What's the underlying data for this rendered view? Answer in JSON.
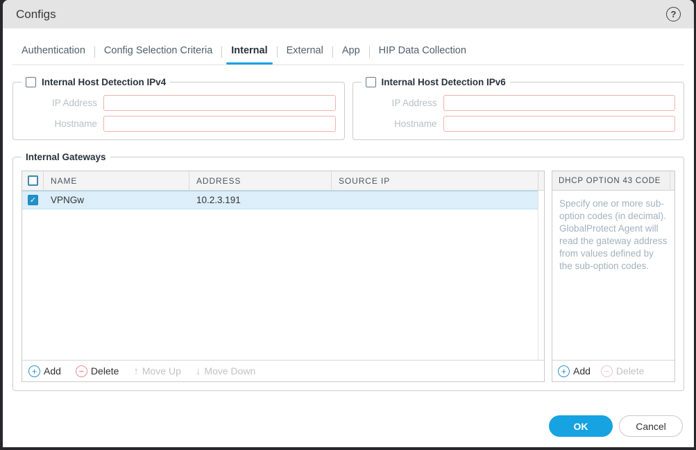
{
  "colors": {
    "accent_blue": "#17a2e2",
    "checkbox_blue": "#2191c9",
    "selection_blue": "#dceefa",
    "input_border_salmon": "#f0b2ab",
    "danger_red": "#e26b6b",
    "header_gray": "#e5e4e4"
  },
  "header": {
    "title": "Configs",
    "help_glyph": "?"
  },
  "icons": {
    "plus": "+",
    "minus": "−",
    "arrow_up": "↑",
    "arrow_down": "↓",
    "check": "✓"
  },
  "tabs": [
    {
      "label": "Authentication",
      "active": false
    },
    {
      "label": "Config Selection Criteria",
      "active": false
    },
    {
      "label": "Internal",
      "active": true
    },
    {
      "label": "External",
      "active": false
    },
    {
      "label": "App",
      "active": false
    },
    {
      "label": "HIP Data Collection",
      "active": false
    }
  ],
  "ipv4": {
    "legend": "Internal Host Detection IPv4",
    "checkbox_checked": false,
    "ip_label": "IP Address",
    "ip_value": "",
    "hostname_label": "Hostname",
    "hostname_value": ""
  },
  "ipv6": {
    "legend": "Internal Host Detection IPv6",
    "checkbox_checked": false,
    "ip_label": "IP Address",
    "ip_value": "",
    "hostname_label": "Hostname",
    "hostname_value": ""
  },
  "gateways": {
    "legend": "Internal Gateways",
    "table": {
      "select_all_checked": false,
      "columns": [
        "NAME",
        "ADDRESS",
        "SOURCE IP"
      ],
      "rows": [
        {
          "checked": true,
          "selected": true,
          "name": "VPNGw",
          "address": "10.2.3.191",
          "source_ip": ""
        }
      ],
      "toolbar": {
        "add": "Add",
        "delete": "Delete",
        "move_up": "Move Up",
        "move_down": "Move Down"
      }
    },
    "dhcp": {
      "header": "DHCP OPTION 43 CODE",
      "description": "Specify one or more sub-option codes (in decimal). GlobalProtect Agent will read the gateway address from values defined by the sub-option codes.",
      "toolbar": {
        "add": "Add",
        "delete": "Delete"
      }
    }
  },
  "footer": {
    "ok": "OK",
    "cancel": "Cancel"
  }
}
